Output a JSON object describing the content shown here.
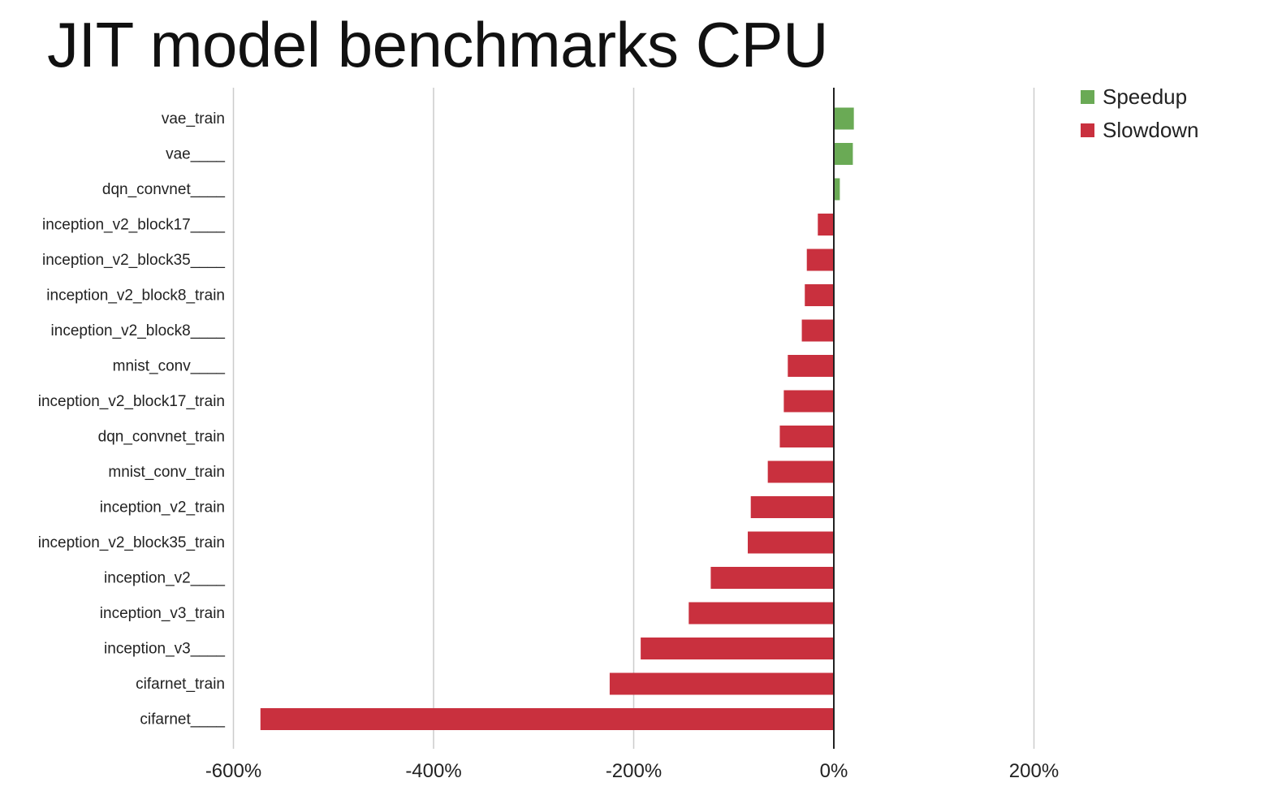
{
  "chart_data": {
    "type": "bar",
    "orientation": "horizontal",
    "title": "JIT model benchmarks CPU",
    "xlabel": "",
    "ylabel": "",
    "categories": [
      "vae_train",
      "vae____",
      "dqn_convnet____",
      "inception_v2_block17____",
      "inception_v2_block35____",
      "inception_v2_block8_train",
      "inception_v2_block8____",
      "mnist_conv____",
      "inception_v2_block17_train",
      "dqn_convnet_train",
      "mnist_conv_train",
      "inception_v2_train",
      "inception_v2_block35_train",
      "inception_v2____",
      "inception_v3_train",
      "inception_v3____",
      "cifarnet_train",
      "cifarnet____"
    ],
    "values": [
      20,
      19,
      6,
      -16,
      -27,
      -29,
      -32,
      -46,
      -50,
      -54,
      -66,
      -83,
      -86,
      -123,
      -145,
      -193,
      -224,
      -573
    ],
    "xlim": [
      -600,
      300
    ],
    "xticks": [
      -600,
      -400,
      -200,
      0,
      200
    ],
    "xtick_labels": [
      "-600%",
      "-400%",
      "-200%",
      "0%",
      "200%"
    ],
    "grid": true,
    "legend": {
      "position": "top-right",
      "entries": [
        {
          "label": "Speedup",
          "color": "#6aaa55"
        },
        {
          "label": "Slowdown",
          "color": "#c9303e"
        }
      ]
    },
    "colors": {
      "positive": "#6aaa55",
      "negative": "#c9303e",
      "zero_line": "#222222",
      "grid": "#cccccc"
    }
  }
}
